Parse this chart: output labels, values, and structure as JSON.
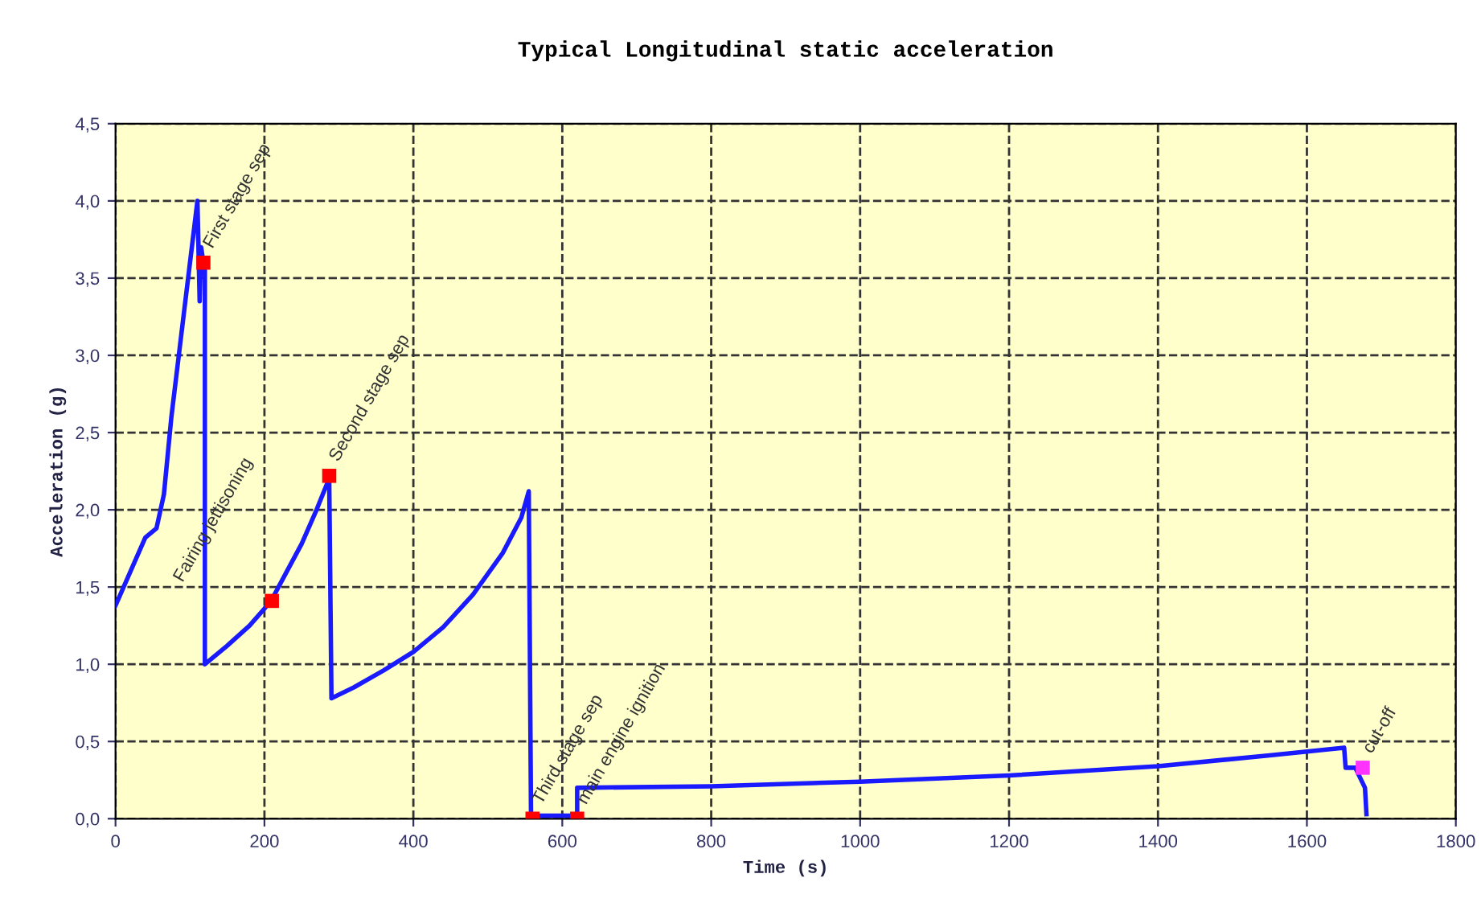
{
  "chart_data": {
    "type": "line",
    "title": "Typical Longitudinal static acceleration",
    "xlabel": "Time (s)",
    "ylabel": "Acceleration (g)",
    "xlim": [
      0,
      1800
    ],
    "xticks": [
      0,
      200,
      400,
      600,
      800,
      1000,
      1200,
      1400,
      1600,
      1800
    ],
    "ylim": [
      0,
      4.5
    ],
    "yticks": [
      {
        "value": 0,
        "label": "0,0"
      },
      {
        "value": 0.5,
        "label": "0,5"
      },
      {
        "value": 1,
        "label": "1,0"
      },
      {
        "value": 1.5,
        "label": "1,5"
      },
      {
        "value": 2,
        "label": "2,0"
      },
      {
        "value": 2.5,
        "label": "2,5"
      },
      {
        "value": 3,
        "label": "3,0"
      },
      {
        "value": 3.5,
        "label": "3,5"
      },
      {
        "value": 4,
        "label": "4,0"
      },
      {
        "value": 4.5,
        "label": "4,5"
      }
    ],
    "grid": true,
    "legend": false,
    "series": [
      {
        "color": "#1a1aff",
        "marker": "none",
        "line_style": "solid",
        "x": [
          0,
          20,
          40,
          55,
          65,
          75,
          85,
          95,
          105,
          110,
          113,
          115,
          118,
          120,
          120,
          150,
          180,
          200,
          210,
          230,
          250,
          270,
          285,
          287,
          290,
          320,
          360,
          400,
          440,
          480,
          520,
          545,
          555,
          558,
          560,
          600,
          620,
          620,
          800,
          1000,
          1200,
          1400,
          1550,
          1650,
          1652,
          1665,
          1678,
          1680
        ],
        "values": [
          1.38,
          1.6,
          1.82,
          1.88,
          2.1,
          2.6,
          3.0,
          3.4,
          3.8,
          4.0,
          3.35,
          3.7,
          3.6,
          3.55,
          1.0,
          1.12,
          1.25,
          1.36,
          1.42,
          1.6,
          1.78,
          2.0,
          2.18,
          2.2,
          0.78,
          0.85,
          0.96,
          1.08,
          1.24,
          1.45,
          1.72,
          1.95,
          2.12,
          0.02,
          0.02,
          0.02,
          0.02,
          0.2,
          0.21,
          0.24,
          0.28,
          0.34,
          0.41,
          0.46,
          0.33,
          0.33,
          0.2,
          0.03
        ]
      },
      {
        "type": "scatter",
        "marker": "square",
        "x": [
          118,
          210,
          287,
          560,
          620,
          1675
        ],
        "values": [
          3.6,
          1.41,
          2.22,
          0.0,
          0.0,
          0.33
        ],
        "colors": [
          "#ff0000",
          "#ff0000",
          "#ff0000",
          "#ff0000",
          "#ff0000",
          "#ff33ff"
        ]
      }
    ],
    "annotations": [
      {
        "text": "First stage sep",
        "x": 118,
        "y": 3.6
      },
      {
        "text": "Fairing jettisoning",
        "x": 210,
        "y": 1.41
      },
      {
        "text": "Second stage sep",
        "x": 287,
        "y": 2.22
      },
      {
        "text": "Third stage sep",
        "x": 560,
        "y": 0.0
      },
      {
        "text": "main engine ignition",
        "x": 620,
        "y": 0.0
      },
      {
        "text": "cut-off",
        "x": 1675,
        "y": 0.33
      }
    ]
  }
}
